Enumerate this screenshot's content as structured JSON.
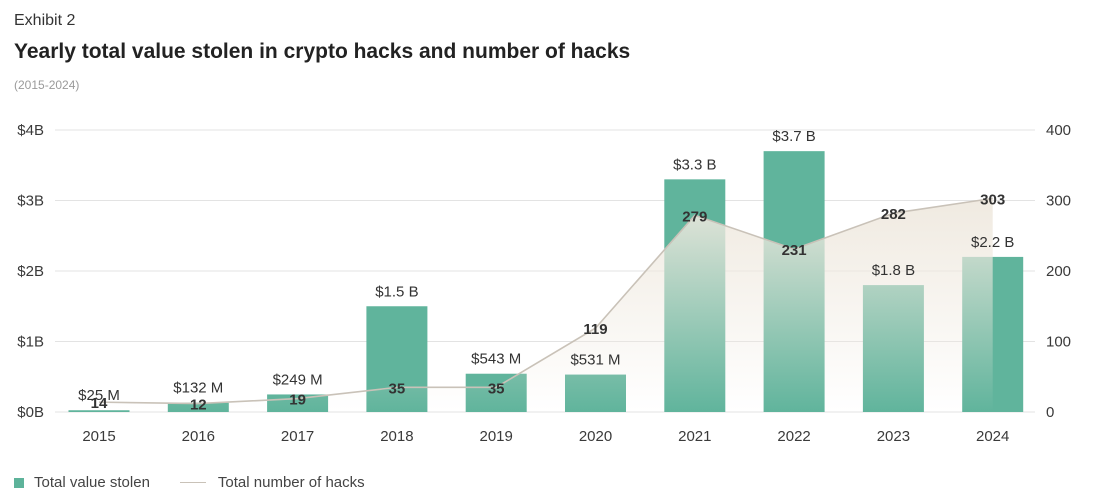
{
  "header": {
    "exhibit": "Exhibit 2",
    "title": "Yearly total value stolen in crypto hacks and number of hacks",
    "subtitle": "(2015-2024)"
  },
  "legend": {
    "bar_label": "Total value stolen",
    "line_label": "Total number of hacks"
  },
  "colors": {
    "bar": "#5db39a",
    "line": "#c9c2b8",
    "area": "#efe9df",
    "grid": "#e3e3e3"
  },
  "chart_data": {
    "type": "bar",
    "categories": [
      "2015",
      "2016",
      "2017",
      "2018",
      "2019",
      "2020",
      "2021",
      "2022",
      "2023",
      "2024"
    ],
    "series": [
      {
        "name": "Total value stolen",
        "type": "bar",
        "axis": "left",
        "values": [
          0.025,
          0.132,
          0.249,
          1.5,
          0.543,
          0.531,
          3.3,
          3.7,
          1.8,
          2.2
        ],
        "labels": [
          "$25 M",
          "$132 M",
          "$249 M",
          "$1.5 B",
          "$543 M",
          "$531 M",
          "$3.3 B",
          "$3.7 B",
          "$1.8 B",
          "$2.2 B"
        ]
      },
      {
        "name": "Total number of hacks",
        "type": "line",
        "axis": "right",
        "values": [
          14,
          12,
          19,
          35,
          35,
          null,
          279,
          231,
          282,
          303
        ],
        "labels": [
          "14",
          "12",
          "19",
          "35",
          "35",
          "119",
          "279",
          "231",
          "282",
          "303"
        ],
        "line_values": [
          14,
          12,
          19,
          35,
          35,
          119,
          279,
          231,
          282,
          303
        ]
      }
    ],
    "y_left": {
      "ticks": [
        0,
        1,
        2,
        3,
        4
      ],
      "tick_labels": [
        "$0B",
        "$1B",
        "$2B",
        "$3B",
        "$4B"
      ],
      "ylim": [
        0,
        4
      ]
    },
    "y_right": {
      "ticks": [
        0,
        100,
        200,
        300,
        400
      ],
      "tick_labels": [
        "0",
        "100",
        "200",
        "300",
        "400"
      ],
      "ylim": [
        0,
        400
      ]
    },
    "grid": true,
    "legend_position": "bottom-left"
  }
}
